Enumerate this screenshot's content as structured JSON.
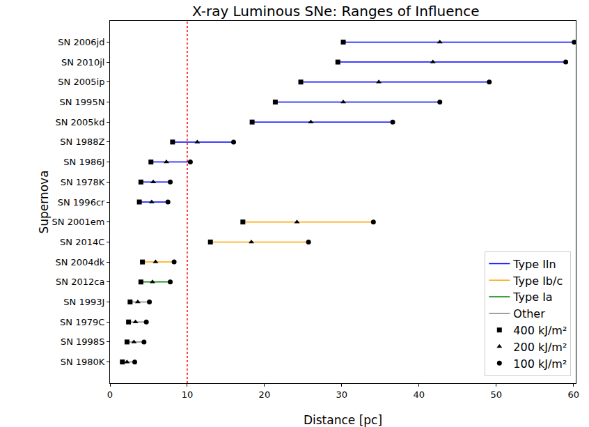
{
  "chart_data": {
    "type": "range",
    "title": "X-ray Luminous SNe: Ranges of Influence",
    "x_label": "Distance [pc]",
    "y_label": "Supernova",
    "categories": [
      "SN 2006jd",
      "SN 2010jl",
      "SN 2005ip",
      "SN 1995N",
      "SN 2005kd",
      "SN 2001em",
      "SN 2014C",
      "SN 1988Z",
      "SN 1986J",
      "SN 2004dk",
      "SN 1978K",
      "SN 2012ca",
      "SN 1996cr",
      "SN 1993J",
      "SN 1979C",
      "SN 1998S",
      "SN 1980K"
    ],
    "category_group": [
      "Type IIn",
      "Type IIn",
      "Type IIn",
      "Type IIn",
      "Type IIn",
      "Type Ib/c",
      "Type Ib/c",
      "Type IIn",
      "Type IIn",
      "Type Ib/c",
      "Type IIn",
      "Type Ia",
      "Type IIn",
      "Other",
      "Other",
      "Other",
      "Other"
    ],
    "groups": [
      {
        "name": "Type IIn",
        "color": "#0000ff"
      },
      {
        "name": "Type Ib/c",
        "color": "#ffa500"
      },
      {
        "name": "Type Ia",
        "color": "#008000"
      },
      {
        "name": "Other",
        "color": "#808080"
      }
    ],
    "series": [
      {
        "name": "400 kJ/m²",
        "marker": "square",
        "color": "#000000",
        "values": [
          30.2,
          29.5,
          24.7,
          21.4,
          18.4,
          17.2,
          13.0,
          8.1,
          5.3,
          4.2,
          4.0,
          4.0,
          3.8,
          2.6,
          2.4,
          2.2,
          1.6
        ]
      },
      {
        "name": "200 kJ/m²",
        "marker": "triangle",
        "color": "#000000",
        "values": [
          42.7,
          41.8,
          34.8,
          30.2,
          26.0,
          24.2,
          18.3,
          11.3,
          7.3,
          5.9,
          5.6,
          5.5,
          5.4,
          3.6,
          3.3,
          3.1,
          2.2
        ]
      },
      {
        "name": "100 kJ/m²",
        "marker": "circle",
        "color": "#000000",
        "values": [
          60.1,
          59.0,
          49.1,
          42.7,
          36.6,
          34.1,
          25.7,
          16.0,
          10.4,
          8.3,
          7.8,
          7.8,
          7.5,
          5.1,
          4.7,
          4.4,
          3.2
        ]
      }
    ],
    "vline": {
      "x": 10,
      "color": "#ff0000",
      "line_style": "dotted"
    },
    "xlim": [
      0,
      60.3
    ],
    "xticks": [
      0,
      10,
      20,
      30,
      40,
      50,
      60
    ],
    "legend": "lower right",
    "grid": false
  }
}
